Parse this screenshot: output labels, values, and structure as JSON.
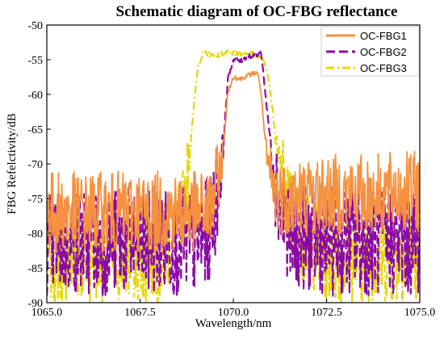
{
  "chart_data": {
    "type": "line",
    "title": "Schematic diagram of OC-FBG reflectance",
    "xlabel": "Wavelength/nm",
    "ylabel": "FBG Refelctivity/dB",
    "xlim": [
      1065.0,
      1075.0
    ],
    "ylim": [
      -90,
      -50
    ],
    "x_ticks": [
      1065.0,
      1067.5,
      1070.0,
      1072.5,
      1075.0
    ],
    "x_tick_labels": [
      "1065.0",
      "1067.5",
      "1070.0",
      "1072.5",
      "1075.0"
    ],
    "y_ticks": [
      -90,
      -85,
      -80,
      -75,
      -70,
      -65,
      -60,
      -55,
      -50
    ],
    "y_tick_labels": [
      "-90",
      "-85",
      "-80",
      "-75",
      "-70",
      "-65",
      "-60",
      "-55",
      "-50"
    ],
    "grid": false,
    "legend_position": "top-right",
    "series": [
      {
        "name": "OC-FBG1",
        "color": "#F5913F",
        "style": "solid",
        "x": [
          1065.0,
          1066.0,
          1067.0,
          1068.0,
          1069.0,
          1069.4,
          1069.7,
          1069.85,
          1070.0,
          1070.2,
          1070.4,
          1070.55,
          1070.65,
          1070.75,
          1070.9,
          1071.1,
          1071.5,
          1072.5,
          1073.5,
          1075.0
        ],
        "values": [
          -77.5,
          -77.5,
          -77.5,
          -77.5,
          -77.5,
          -77.0,
          -70.0,
          -60.0,
          -57.5,
          -57.8,
          -57.3,
          -57.0,
          -56.8,
          -60.0,
          -70.0,
          -75.0,
          -75.5,
          -75.0,
          -75.0,
          -74.5
        ]
      },
      {
        "name": "OC-FBG2",
        "color": "#8B0AA5",
        "style": "dashed",
        "x": [
          1065.0,
          1066.0,
          1067.0,
          1068.0,
          1069.0,
          1069.4,
          1069.7,
          1069.85,
          1070.0,
          1070.2,
          1070.4,
          1070.6,
          1070.75,
          1070.9,
          1071.1,
          1071.3,
          1071.6,
          1072.5,
          1073.5,
          1075.0
        ],
        "values": [
          -82.0,
          -82.0,
          -82.0,
          -82.0,
          -82.0,
          -80.0,
          -70.0,
          -58.0,
          -55.0,
          -55.2,
          -54.5,
          -54.5,
          -54.0,
          -62.0,
          -72.0,
          -78.0,
          -81.0,
          -82.0,
          -82.0,
          -82.0
        ]
      },
      {
        "name": "OC-FBG3",
        "color": "#E6D60A",
        "style": "dashdot",
        "x": [
          1065.0,
          1066.0,
          1067.0,
          1068.0,
          1068.6,
          1068.75,
          1068.9,
          1069.05,
          1069.2,
          1069.5,
          1069.8,
          1070.1,
          1070.4,
          1070.7,
          1070.9,
          1071.05,
          1071.2,
          1071.4,
          1071.7,
          1072.5,
          1073.5,
          1075.0
        ],
        "values": [
          -84.0,
          -84.0,
          -84.0,
          -84.0,
          -80.0,
          -74.0,
          -64.0,
          -56.0,
          -54.0,
          -54.5,
          -54.0,
          -54.2,
          -54.0,
          -54.5,
          -56.0,
          -62.0,
          -70.0,
          -75.5,
          -80.0,
          -84.0,
          -84.0,
          -84.0
        ]
      }
    ]
  }
}
